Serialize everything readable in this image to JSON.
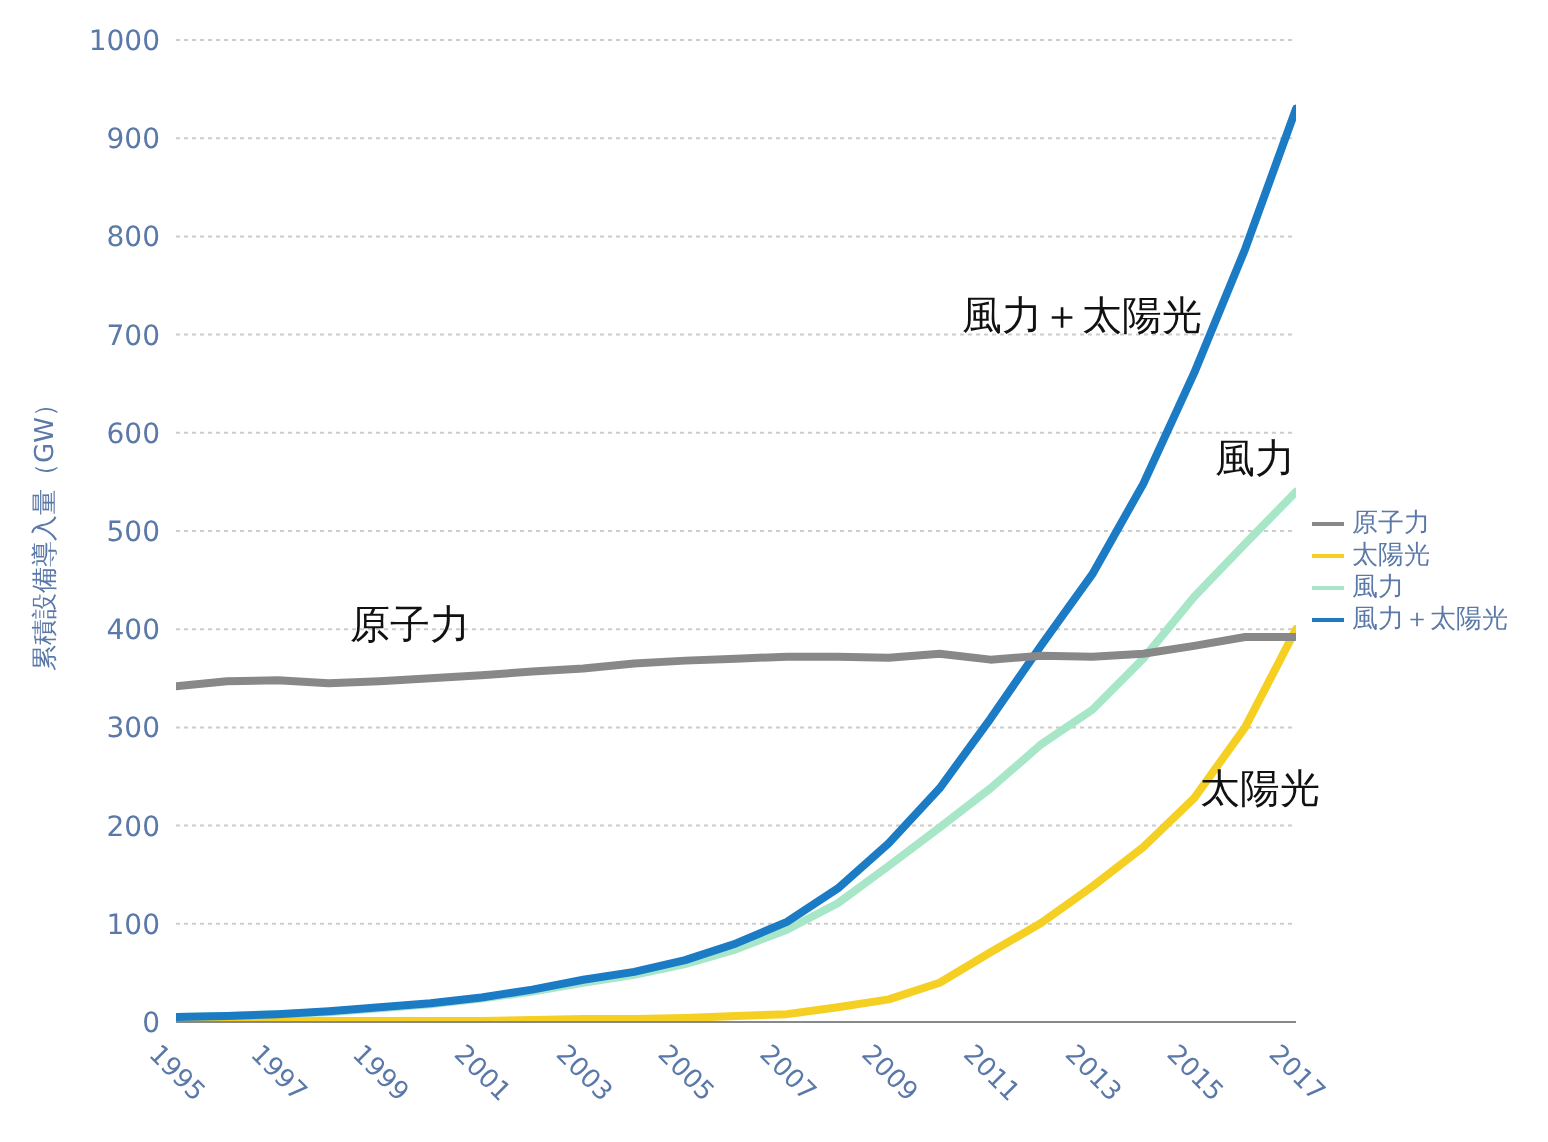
{
  "chart_data": {
    "type": "line",
    "ylabel": "累積設備導入量（GW）",
    "x": [
      1995,
      1996,
      1997,
      1998,
      1999,
      2000,
      2001,
      2002,
      2003,
      2004,
      2005,
      2006,
      2007,
      2008,
      2009,
      2010,
      2011,
      2012,
      2013,
      2014,
      2015,
      2016,
      2017
    ],
    "series": [
      {
        "name": "風力",
        "color": "#a8e6c8",
        "values": [
          5,
          6,
          8,
          10,
          14,
          18,
          24,
          31,
          40,
          48,
          59,
          74,
          94,
          121,
          159,
          198,
          238,
          283,
          318,
          370,
          433,
          487,
          540
        ]
      },
      {
        "name": "太陽光",
        "color": "#f5d023",
        "values": [
          0,
          0,
          1,
          1,
          1,
          1,
          1,
          2,
          3,
          3,
          4,
          6,
          8,
          15,
          23,
          40,
          71,
          101,
          138,
          178,
          228,
          300,
          400
        ]
      },
      {
        "name": "風力＋太陽光",
        "color": "#1b7bc4",
        "values": [
          5,
          6,
          8,
          11,
          15,
          19,
          25,
          33,
          43,
          51,
          63,
          80,
          102,
          136,
          182,
          238,
          309,
          384,
          456,
          548,
          661,
          787,
          930
        ]
      },
      {
        "name": "原子力",
        "color": "#888888",
        "values": [
          342,
          347,
          348,
          345,
          347,
          350,
          353,
          357,
          360,
          365,
          368,
          370,
          372,
          372,
          371,
          375,
          369,
          373,
          372,
          375,
          383,
          392,
          392
        ]
      }
    ],
    "annotations": [
      "風力＋太陽光",
      "風力",
      "原子力",
      "太陽光"
    ],
    "xlim": [
      1995,
      2017
    ],
    "xticks": [
      1995,
      1997,
      1999,
      2001,
      2003,
      2005,
      2007,
      2009,
      2011,
      2013,
      2015,
      2017
    ],
    "ylim": [
      0,
      1000
    ],
    "yticks": [
      0,
      100,
      200,
      300,
      400,
      500,
      600,
      700,
      800,
      900,
      1000
    ],
    "grid": "y",
    "legend": "right",
    "marker": "none",
    "line_style": "solid"
  }
}
